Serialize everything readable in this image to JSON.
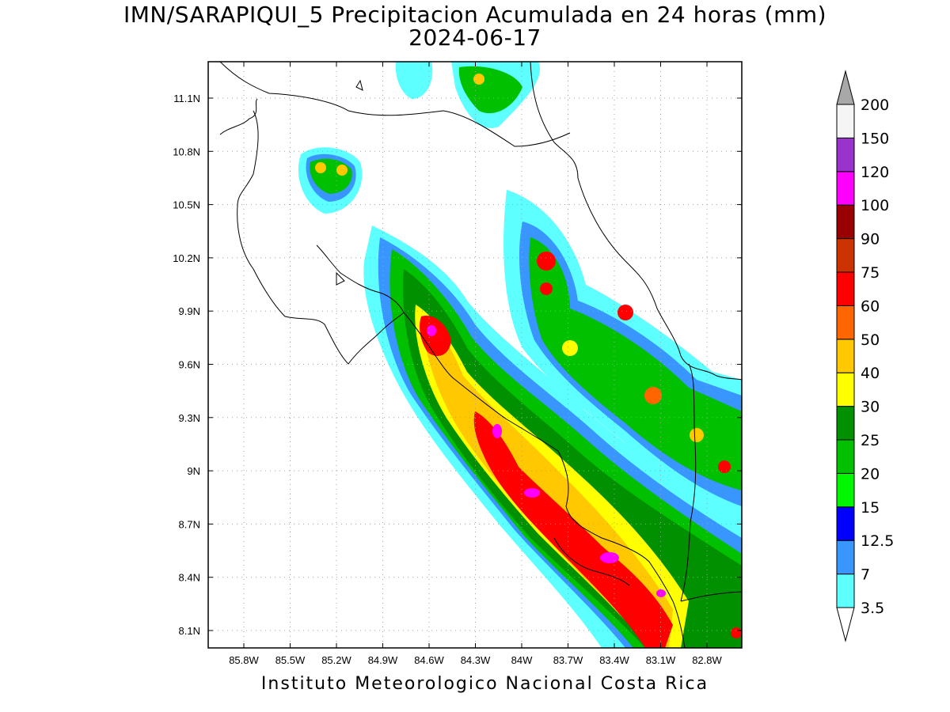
{
  "title": {
    "line1": "IMN/SARAPIQUI_5 Precipitacion Acumulada en 24 horas (mm)",
    "line2": "2024-06-17"
  },
  "footer": "Instituto Meteorologico Nacional Costa Rica",
  "map": {
    "lon_ticks": [
      "85.8W",
      "85.5W",
      "85.2W",
      "84.9W",
      "84.6W",
      "84.3W",
      "84W",
      "83.7W",
      "83.4W",
      "83.1W",
      "82.8W"
    ],
    "lat_ticks": [
      "11.1N",
      "10.8N",
      "10.5N",
      "10.2N",
      "9.9N",
      "9.6N",
      "9.3N",
      "9N",
      "8.7N",
      "8.4N",
      "8.1N"
    ],
    "lon_range": [
      "86.05W",
      "83.05W"
    ],
    "lat_range": [
      "8.0N",
      "11.3N"
    ],
    "grid": "dotted",
    "variable": "24-hour accumulated precipitation (mm)"
  },
  "colorbar": {
    "labels": [
      "3.5",
      "7",
      "12.5",
      "15",
      "20",
      "25",
      "30",
      "40",
      "50",
      "60",
      "75",
      "90",
      "100",
      "120",
      "150",
      "200"
    ],
    "colors": [
      "#5effff",
      "#3a96ff",
      "#0000ff",
      "#00f700",
      "#00c000",
      "#009000",
      "#ffff00",
      "#ffc800",
      "#ff6600",
      "#ff0000",
      "#cc3300",
      "#990000",
      "#ff00ff",
      "#9933cc",
      "#f5f5f5"
    ],
    "over_color": "#a8a8a8",
    "under_color": "#ffffff",
    "placement": "right"
  }
}
